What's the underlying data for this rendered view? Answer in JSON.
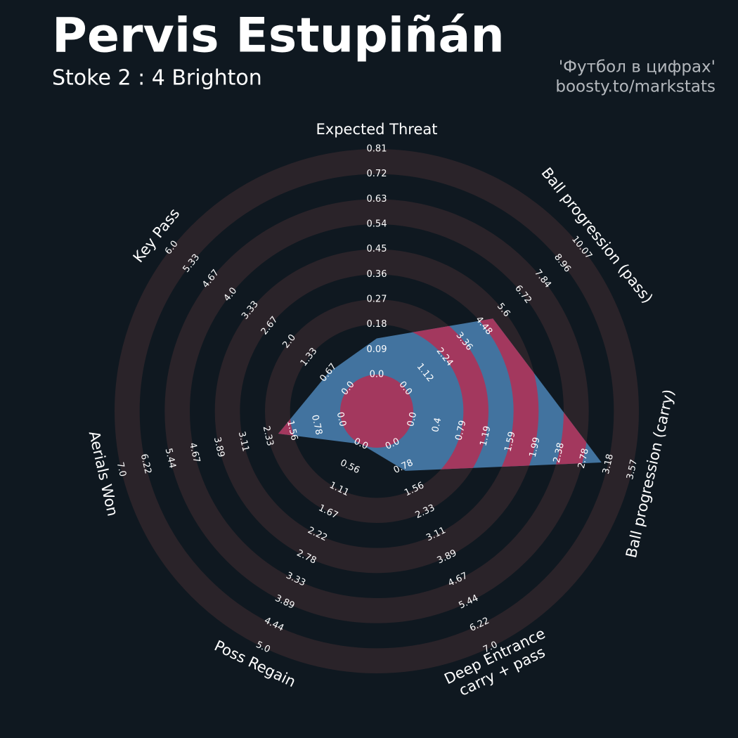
{
  "chart_data": {
    "type": "radar",
    "title": "Pervis Estupiñán",
    "subtitle": "Stoke 2 : 4 Brighton",
    "credits": [
      "'Футбол в цифрах'",
      "boosty.to/markstats"
    ],
    "params": [
      [
        "Expected Threat"
      ],
      [
        "Ball progression (pass)"
      ],
      [
        "Ball progression (carry)"
      ],
      [
        "Deep Entrance",
        "carry + pass"
      ],
      [
        "Poss Regain"
      ],
      [
        "Aerials Won"
      ],
      [
        "Key Pass"
      ]
    ],
    "values": [
      0.13,
      5.0,
      3.07,
      0.92,
      0,
      2.0,
      0.67
    ],
    "ranges": [
      [
        0,
        0.81
      ],
      [
        0,
        10.07
      ],
      [
        0,
        3.57
      ],
      [
        0,
        7
      ],
      [
        0,
        5
      ],
      [
        0,
        7
      ],
      [
        0,
        6
      ]
    ],
    "ticks": [
      [
        {
          "value": 0,
          "label": "0.0"
        },
        0.09,
        0.18,
        0.27,
        0.36,
        0.45,
        0.54,
        0.63,
        0.72,
        0.81
      ],
      [
        {
          "value": 0,
          "label": "0.0"
        },
        1.12,
        2.24,
        3.36,
        4.48,
        5.6,
        6.72,
        7.84,
        8.96,
        10.07
      ],
      [
        {
          "value": 0,
          "label": "0.0"
        },
        0.4,
        0.79,
        1.19,
        1.59,
        1.99,
        2.38,
        2.78,
        3.18,
        3.57
      ],
      [
        {
          "value": 0,
          "label": "0.0"
        },
        0.78,
        1.56,
        2.33,
        3.11,
        3.89,
        4.67,
        5.44,
        6.22,
        {
          "value": 7,
          "label": "7.0"
        }
      ],
      [
        {
          "value": 0,
          "label": "0.0"
        },
        0.56,
        1.11,
        1.67,
        2.22,
        2.78,
        3.33,
        3.89,
        4.44,
        {
          "value": 5,
          "label": "5.0"
        }
      ],
      [
        {
          "value": 0,
          "label": "0.0"
        },
        0.78,
        1.56,
        2.33,
        3.11,
        3.89,
        4.67,
        5.44,
        6.22,
        {
          "value": 7,
          "label": "7.0"
        }
      ],
      [
        {
          "value": 0,
          "label": "0.0"
        },
        0.67,
        1.33,
        {
          "value": 2,
          "label": "2.0"
        },
        2.67,
        3.33,
        {
          "value": 4,
          "label": "4.0"
        },
        4.67,
        5.33,
        {
          "value": 6,
          "label": "6.0"
        }
      ]
    ],
    "color": "#42739f",
    "ring_color": "#a3385e"
  }
}
